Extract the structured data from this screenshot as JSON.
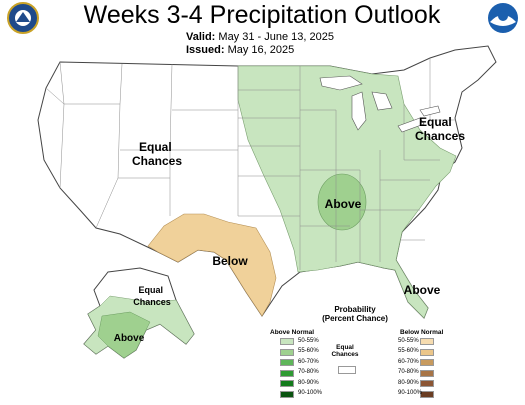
{
  "header": {
    "title": "Weeks 3-4 Precipitation Outlook",
    "valid_label": "Valid:",
    "valid_value": "May 31 - June 13, 2025",
    "issued_label": "Issued:",
    "issued_value": "May 16, 2025",
    "left_logo": "department-of-commerce-seal",
    "right_logo": "noaa-logo"
  },
  "map_labels": {
    "west": [
      "Equal",
      "Chances"
    ],
    "northeast": [
      "Equal",
      "Chances"
    ],
    "alaska_north": [
      "Equal",
      "Chances"
    ],
    "southwest": "Below",
    "ohio_valley": "Above",
    "southeast": "Above",
    "alaska_south": "Above"
  },
  "legend": {
    "title_line1": "Probability",
    "title_line2": "(Percent Chance)",
    "above_title": "Above Normal",
    "below_title": "Below Normal",
    "equal_title_line1": "Equal",
    "equal_title_line2": "Chances",
    "above_ranges": [
      "50-55%",
      "55-60%",
      "60-70%",
      "70-80%",
      "80-90%",
      "90-100%"
    ],
    "below_ranges": [
      "50-55%",
      "55-60%",
      "60-70%",
      "70-80%",
      "80-90%",
      "90-100%"
    ],
    "above_colors": [
      "#c8e5bf",
      "#9fd08f",
      "#5fb65a",
      "#2f9a33",
      "#137b1c",
      "#0a5310"
    ],
    "below_colors": [
      "#f6dcb0",
      "#ebc68a",
      "#c79a5e",
      "#a77446",
      "#8c5634",
      "#6a3d22"
    ],
    "equal_color": "#ffffff"
  },
  "colors": {
    "above_light": "#c8e5bf",
    "above_medium": "#9fd08f",
    "below_light": "#f0d19a",
    "state_border": "#8c8c8c",
    "water_border": "#555555"
  }
}
